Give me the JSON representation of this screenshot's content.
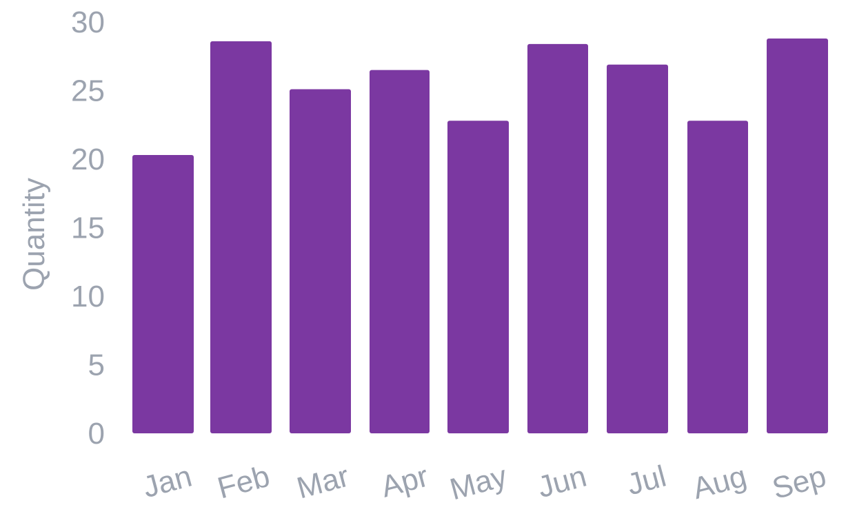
{
  "chart_data": {
    "type": "bar",
    "title": "",
    "xlabel": "",
    "ylabel": "Quantity",
    "categories": [
      "Jan",
      "Feb",
      "Mar",
      "Apr",
      "May",
      "Jun",
      "Jul",
      "Aug",
      "Sep"
    ],
    "values": [
      20.3,
      28.6,
      25.1,
      26.5,
      22.8,
      28.4,
      26.9,
      22.8,
      28.8
    ],
    "ylim": [
      0,
      30
    ],
    "yticks": [
      "0",
      "5",
      "10",
      "15",
      "20",
      "25",
      "30"
    ],
    "grid": false,
    "legend": "none",
    "colors": {
      "bar": "#7b38a1",
      "text": "#9ca3af"
    }
  }
}
